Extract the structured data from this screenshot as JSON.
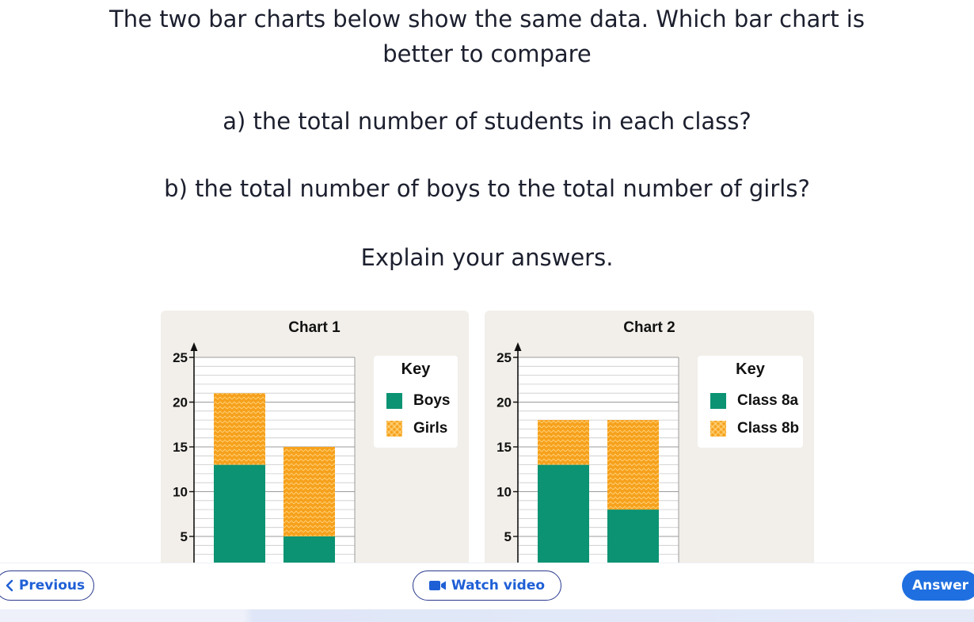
{
  "question": {
    "line1": "The two bar charts below show the same data. Which bar chart is",
    "line2": "better to compare",
    "part_a": "a) the total number of students in each class?",
    "part_b": "b) the total number of boys to the total number of girls?",
    "instruction": "Explain your answers."
  },
  "colors": {
    "green": "#0b9373",
    "orange": "#f6a11c",
    "panel": "#f2efea",
    "primary_button": "#1f6fe0"
  },
  "chart_data": [
    {
      "type": "bar",
      "stacked": true,
      "title": "Chart 1",
      "categories": [
        "",
        ""
      ],
      "series": [
        {
          "name": "Boys",
          "color": "#0b9373",
          "values": [
            13,
            5
          ]
        },
        {
          "name": "Girls",
          "color": "#f6a11c",
          "values": [
            8,
            10
          ]
        }
      ],
      "yticks": [
        5,
        10,
        15,
        20,
        25
      ],
      "ylim": [
        2,
        25
      ],
      "grid": true,
      "legend_title": "Key",
      "legend_position": "right"
    },
    {
      "type": "bar",
      "stacked": true,
      "title": "Chart 2",
      "categories": [
        "",
        ""
      ],
      "series": [
        {
          "name": "Class 8a",
          "color": "#0b9373",
          "values": [
            13,
            8
          ]
        },
        {
          "name": "Class 8b",
          "color": "#f6a11c",
          "values": [
            5,
            10
          ]
        }
      ],
      "yticks": [
        5,
        10,
        15,
        20,
        25
      ],
      "ylim": [
        2,
        25
      ],
      "grid": true,
      "legend_title": "Key",
      "legend_position": "right"
    }
  ],
  "nav": {
    "previous_label": "Previous",
    "watch_video_label": "Watch video",
    "answer_label": "Answer",
    "previous_icon": "chevron-left-icon",
    "video_icon": "video-camera-icon"
  }
}
